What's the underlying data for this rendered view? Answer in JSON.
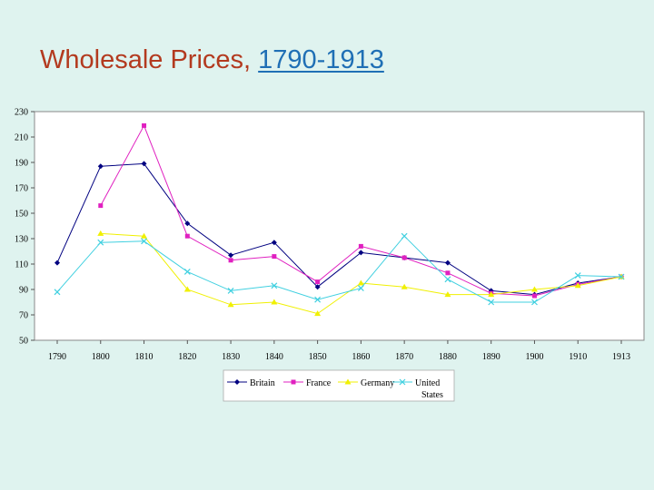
{
  "slide": {
    "title_prefix": "Wholesale Prices, ",
    "title_link": "1790-1913"
  },
  "chart_data": {
    "type": "line",
    "title": "",
    "xlabel": "",
    "ylabel": "",
    "x": [
      "1790",
      "1800",
      "1810",
      "1820",
      "1830",
      "1840",
      "1850",
      "1860",
      "1870",
      "1880",
      "1890",
      "1900",
      "1910",
      "1913"
    ],
    "ylim": [
      50,
      230
    ],
    "yticks": [
      50,
      70,
      90,
      110,
      130,
      150,
      170,
      190,
      210,
      230
    ],
    "grid": false,
    "legend_position": "bottom",
    "series": [
      {
        "name": "Britain",
        "color": "#000080",
        "marker": "diamond",
        "values": [
          111,
          187,
          189,
          142,
          117,
          127,
          92,
          119,
          115,
          111,
          89,
          86,
          95,
          100
        ]
      },
      {
        "name": "France",
        "color": "#e020c0",
        "marker": "square",
        "values": [
          null,
          156,
          219,
          132,
          113,
          116,
          96,
          124,
          115,
          103,
          87,
          85,
          94,
          100
        ]
      },
      {
        "name": "Germany",
        "color": "#f0f000",
        "marker": "triangle",
        "values": [
          null,
          134,
          132,
          90,
          78,
          80,
          71,
          95,
          92,
          86,
          86,
          90,
          93,
          100
        ]
      },
      {
        "name": "United States",
        "color": "#40d0e0",
        "marker": "x",
        "values": [
          88,
          127,
          128,
          104,
          89,
          93,
          82,
          91,
          132,
          98,
          80,
          80,
          101,
          100
        ]
      }
    ]
  }
}
